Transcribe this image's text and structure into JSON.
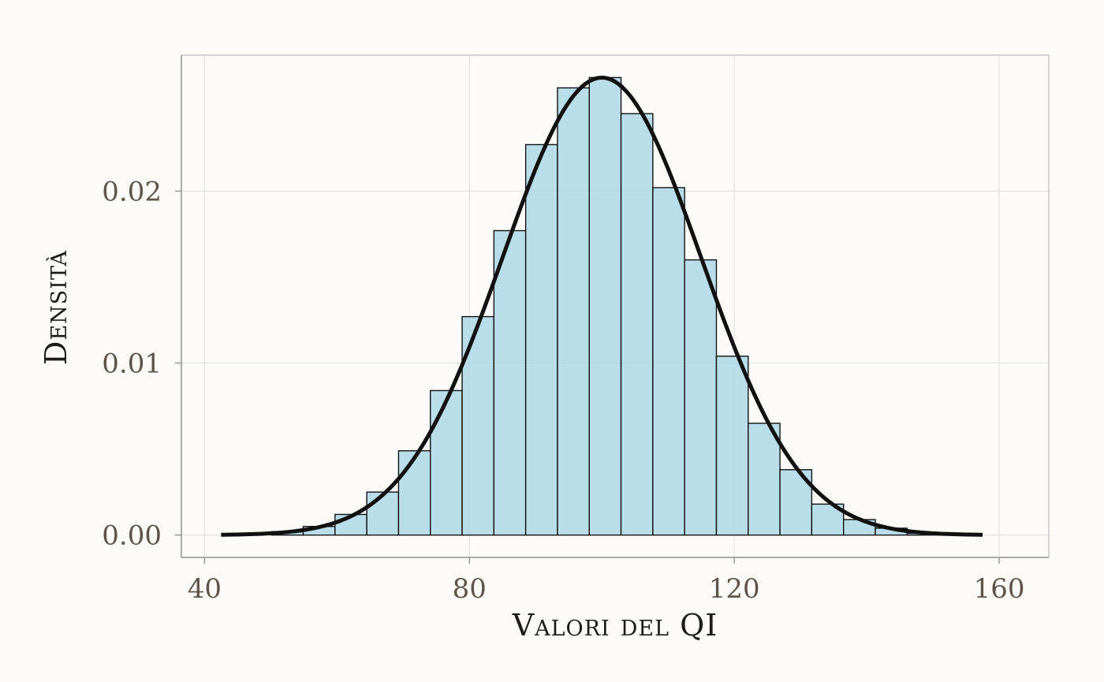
{
  "chart_data": {
    "type": "bar",
    "title": "",
    "xlabel": "Valori del QI",
    "ylabel": "Densità",
    "xlim": [
      36.5,
      167.5
    ],
    "ylim": [
      -0.0013,
      0.0279
    ],
    "x_ticks": [
      40,
      80,
      120,
      160
    ],
    "x_tick_labels": [
      "40",
      "80",
      "120",
      "160"
    ],
    "y_ticks": [
      0.0,
      0.01,
      0.02
    ],
    "y_tick_labels": [
      "0.00",
      "0.01",
      "0.02"
    ],
    "grid": true,
    "legend": "none",
    "histogram": {
      "bin_width": 4.8,
      "bin_left_edges": [
        40.5,
        45.3,
        50.1,
        54.9,
        59.7,
        64.5,
        69.3,
        74.1,
        78.9,
        83.7,
        88.5,
        93.3,
        98.1,
        102.9,
        107.7,
        112.5,
        117.3,
        122.1,
        126.9,
        131.7,
        136.5,
        141.3,
        146.1,
        150.9,
        155.7
      ],
      "values": [
        0.0,
        0.0,
        0.0002,
        0.0005,
        0.0012,
        0.0025,
        0.0049,
        0.0084,
        0.0127,
        0.0177,
        0.0227,
        0.026,
        0.0266,
        0.0245,
        0.0202,
        0.016,
        0.0104,
        0.0065,
        0.0038,
        0.0018,
        0.0009,
        0.0004,
        0.0001,
        0.0,
        0.0
      ],
      "fill": "#add8e6",
      "outline": "#111111"
    },
    "density_curve": {
      "type": "normal",
      "mean": 100,
      "sd": 15,
      "x_range": [
        42.5,
        157.5
      ],
      "color": "#111111"
    }
  }
}
